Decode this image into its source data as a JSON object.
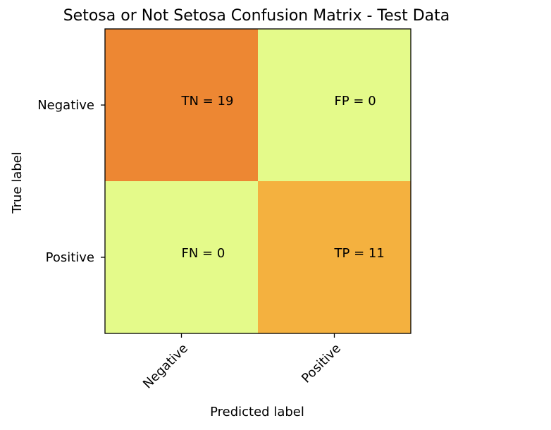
{
  "chart_data": {
    "type": "heatmap",
    "title": "Setosa or Not Setosa Confusion Matrix - Test Data",
    "xlabel": "Predicted label",
    "ylabel": "True label",
    "x_categories": [
      "Negative",
      "Positive"
    ],
    "y_categories": [
      "Negative",
      "Positive"
    ],
    "values": [
      [
        19,
        0
      ],
      [
        0,
        11
      ]
    ],
    "cell_labels": [
      [
        "TN = 19",
        "FP = 0"
      ],
      [
        "FN = 0",
        "TP = 11"
      ]
    ],
    "colormap": "Wistia",
    "cell_colors": [
      [
        "#ed8733",
        "#e4fa8a"
      ],
      [
        "#e4fa8a",
        "#f4b13f"
      ]
    ],
    "legend": "none",
    "grid": false
  }
}
